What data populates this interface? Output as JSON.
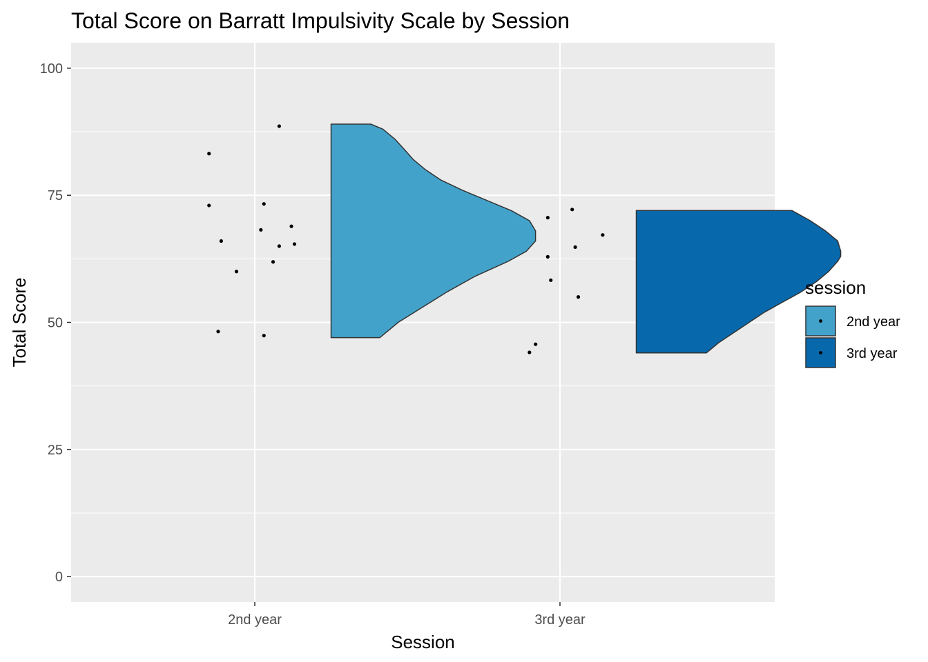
{
  "chart_data": {
    "type": "violin",
    "title": "Total Score on Barratt Impulsivity Scale by Session",
    "xlabel": "Session",
    "ylabel": "Total Score",
    "categories": [
      "2nd year",
      "3rd year"
    ],
    "ylim": [
      -5,
      105
    ],
    "yticks": [
      0,
      25,
      50,
      75,
      100
    ],
    "grid": true,
    "legend": {
      "title": "session",
      "position": "right",
      "entries": [
        "2nd year",
        "3rd year"
      ]
    },
    "colors": {
      "2nd year": "#43a2ca",
      "3rd year": "#0868ac",
      "panel": "#ebebeb",
      "grid": "#ffffff",
      "outline": "#333333",
      "point": "#000000"
    },
    "series": [
      {
        "category": "2nd year",
        "points": [
          {
            "jitter": -0.15,
            "y": 83.2
          },
          {
            "jitter": 0.08,
            "y": 88.6
          },
          {
            "jitter": -0.15,
            "y": 73.0
          },
          {
            "jitter": 0.03,
            "y": 73.3
          },
          {
            "jitter": 0.02,
            "y": 68.2
          },
          {
            "jitter": 0.12,
            "y": 68.9
          },
          {
            "jitter": -0.11,
            "y": 66.0
          },
          {
            "jitter": 0.08,
            "y": 65.0
          },
          {
            "jitter": 0.13,
            "y": 65.4
          },
          {
            "jitter": 0.06,
            "y": 61.9
          },
          {
            "jitter": -0.06,
            "y": 60.0
          },
          {
            "jitter": -0.12,
            "y": 48.2
          },
          {
            "jitter": 0.03,
            "y": 47.4
          }
        ],
        "density": {
          "min": 47.0,
          "max": 89.0,
          "profile": [
            [
              47.0,
              0.16
            ],
            [
              50.0,
              0.22
            ],
            [
              53.0,
              0.3
            ],
            [
              56.0,
              0.38
            ],
            [
              59.0,
              0.47
            ],
            [
              62.0,
              0.58
            ],
            [
              64.0,
              0.64
            ],
            [
              66.0,
              0.67
            ],
            [
              67.0,
              0.67
            ],
            [
              68.0,
              0.67
            ],
            [
              70.0,
              0.65
            ],
            [
              72.0,
              0.59
            ],
            [
              74.0,
              0.51
            ],
            [
              76.0,
              0.43
            ],
            [
              78.0,
              0.36
            ],
            [
              80.0,
              0.31
            ],
            [
              82.0,
              0.27
            ],
            [
              84.0,
              0.24
            ],
            [
              86.0,
              0.21
            ],
            [
              88.0,
              0.17
            ],
            [
              89.0,
              0.13
            ]
          ]
        }
      },
      {
        "category": "3rd year",
        "points": [
          {
            "jitter": 0.04,
            "y": 72.2
          },
          {
            "jitter": -0.04,
            "y": 70.6
          },
          {
            "jitter": 0.14,
            "y": 67.2
          },
          {
            "jitter": 0.05,
            "y": 64.8
          },
          {
            "jitter": -0.04,
            "y": 62.9
          },
          {
            "jitter": -0.03,
            "y": 58.3
          },
          {
            "jitter": 0.06,
            "y": 55.0
          },
          {
            "jitter": -0.08,
            "y": 45.7
          },
          {
            "jitter": -0.1,
            "y": 44.1
          }
        ],
        "density": {
          "min": 44.0,
          "max": 72.0,
          "profile": [
            [
              44.0,
              0.23
            ],
            [
              46.0,
              0.27
            ],
            [
              48.0,
              0.32
            ],
            [
              50.0,
              0.37
            ],
            [
              52.0,
              0.42
            ],
            [
              54.0,
              0.48
            ],
            [
              56.0,
              0.54
            ],
            [
              58.0,
              0.59
            ],
            [
              60.0,
              0.63
            ],
            [
              62.0,
              0.66
            ],
            [
              63.0,
              0.67
            ],
            [
              64.0,
              0.67
            ],
            [
              66.0,
              0.66
            ],
            [
              68.0,
              0.62
            ],
            [
              70.0,
              0.57
            ],
            [
              71.0,
              0.54
            ],
            [
              72.0,
              0.51
            ]
          ]
        }
      }
    ]
  }
}
